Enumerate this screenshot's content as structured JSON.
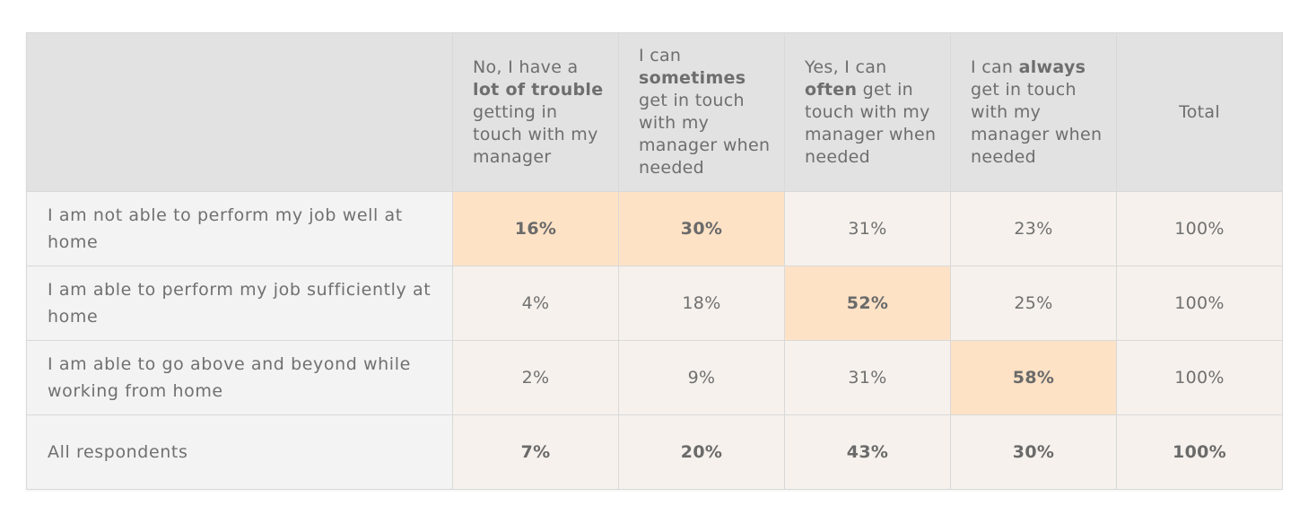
{
  "chart_data": {
    "type": "table",
    "columns": [
      {
        "key": "row",
        "label": ""
      },
      {
        "key": "c1",
        "parts": [
          "No, I have a ",
          "lot of trouble",
          " getting in touch with my manager"
        ]
      },
      {
        "key": "c2",
        "parts": [
          "I can ",
          "sometimes",
          " get in touch with my manager when needed"
        ]
      },
      {
        "key": "c3",
        "parts": [
          "Yes, I can ",
          "often",
          " get in touch with my manager when needed"
        ]
      },
      {
        "key": "c4",
        "parts": [
          "I can ",
          "always",
          " get in touch with my manager when needed"
        ]
      },
      {
        "key": "total",
        "label": "Total"
      }
    ],
    "rows": [
      {
        "label": "I am not able to perform my job well at home",
        "values": [
          "16%",
          "30%",
          "31%",
          "23%",
          "100%"
        ],
        "highlight": [
          true,
          true,
          false,
          false,
          false
        ]
      },
      {
        "label": "I am able to perform my job sufficiently at home",
        "values": [
          "4%",
          "18%",
          "52%",
          "25%",
          "100%"
        ],
        "highlight": [
          false,
          false,
          true,
          false,
          false
        ]
      },
      {
        "label": "I am able to go above and beyond while working from home",
        "values": [
          "2%",
          "9%",
          "31%",
          "58%",
          "100%"
        ],
        "highlight": [
          false,
          false,
          false,
          true,
          false
        ]
      },
      {
        "label": "All respondents",
        "values": [
          "7%",
          "20%",
          "43%",
          "30%",
          "100%"
        ],
        "highlight": [
          false,
          false,
          false,
          false,
          false
        ],
        "summary": true
      }
    ],
    "colors": {
      "header_bg": "#e2e2e2",
      "label_bg": "#f3f3f3",
      "cell_bg": "#f6f1ec",
      "highlight_bg": "#fde2c6",
      "text": "#6b6b6b"
    }
  }
}
